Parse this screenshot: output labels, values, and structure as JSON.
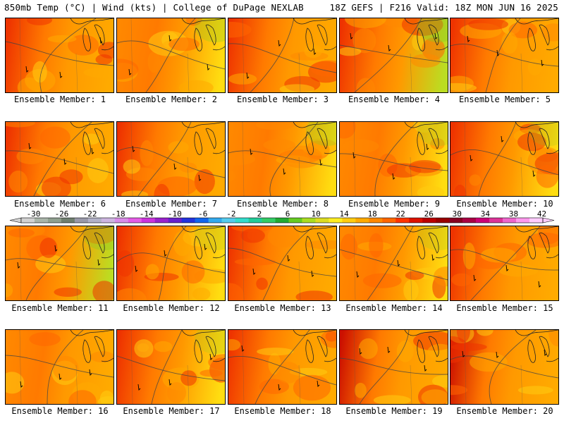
{
  "header": {
    "left": "850mb Temp (°C) | Wind (kts) | College of DuPage NEXLAB",
    "right": "18Z GEFS | F216 Valid: 18Z MON JUN 16 2025"
  },
  "panels": [
    {
      "label": "Ensemble Member: 1",
      "hot": 0.72,
      "cool": 0.35
    },
    {
      "label": "Ensemble Member: 2",
      "hot": 0.5,
      "cool": 0.8
    },
    {
      "label": "Ensemble Member: 3",
      "hot": 0.8,
      "cool": 0.4
    },
    {
      "label": "Ensemble Member: 4",
      "hot": 0.7,
      "cool": 0.9
    },
    {
      "label": "Ensemble Member: 5",
      "hot": 0.8,
      "cool": 0.6
    },
    {
      "label": "Ensemble Member: 6",
      "hot": 0.7,
      "cool": 0.45
    },
    {
      "label": "Ensemble Member: 7",
      "hot": 0.85,
      "cool": 0.55
    },
    {
      "label": "Ensemble Member: 8",
      "hot": 0.3,
      "cool": 0.8
    },
    {
      "label": "Ensemble Member: 9",
      "hot": 0.6,
      "cool": 0.75
    },
    {
      "label": "Ensemble Member: 10",
      "hot": 0.65,
      "cool": 0.7
    },
    {
      "label": "Ensemble Member: 11",
      "hot": 0.6,
      "cool": 0.85
    },
    {
      "label": "Ensemble Member: 12",
      "hot": 0.75,
      "cool": 0.7
    },
    {
      "label": "Ensemble Member: 13",
      "hot": 0.8,
      "cool": 0.5
    },
    {
      "label": "Ensemble Member: 14",
      "hot": 0.55,
      "cool": 0.7
    },
    {
      "label": "Ensemble Member: 15",
      "hot": 0.75,
      "cool": 0.55
    },
    {
      "label": "Ensemble Member: 16",
      "hot": 0.4,
      "cool": 0.6
    },
    {
      "label": "Ensemble Member: 17",
      "hot": 0.7,
      "cool": 0.7
    },
    {
      "label": "Ensemble Member: 18",
      "hot": 0.75,
      "cool": 0.4
    },
    {
      "label": "Ensemble Member: 19",
      "hot": 0.95,
      "cool": 0.45
    },
    {
      "label": "Ensemble Member: 20",
      "hot": 0.9,
      "cool": 0.6
    }
  ],
  "colorbar": {
    "ticks": [
      "-30",
      "-26",
      "-22",
      "-18",
      "-14",
      "-10",
      "-6",
      "-2",
      "2",
      "6",
      "10",
      "14",
      "18",
      "22",
      "26",
      "30",
      "34",
      "38",
      "42"
    ],
    "colors": [
      "#d2d2d2",
      "#a9b5a9",
      "#8fa08f",
      "#6f7f6f",
      "#9999a9",
      "#b2b2c8",
      "#cdb5e0",
      "#d98ce8",
      "#e45ce6",
      "#cc33dd",
      "#9922cc",
      "#6620cc",
      "#2233dd",
      "#1166ee",
      "#33aaee",
      "#55ccee",
      "#33ddcc",
      "#22cc99",
      "#33cc66",
      "#22aa33",
      "#66cc22",
      "#aadd22",
      "#dddd22",
      "#ffee22",
      "#ffcc11",
      "#ffaa00",
      "#ff8800",
      "#ff6600",
      "#ff3300",
      "#dd1100",
      "#bb0000",
      "#990000",
      "#880022",
      "#aa0044",
      "#cc0077",
      "#dd3399",
      "#ee66cc",
      "#ff99ee",
      "#ffccff"
    ]
  }
}
